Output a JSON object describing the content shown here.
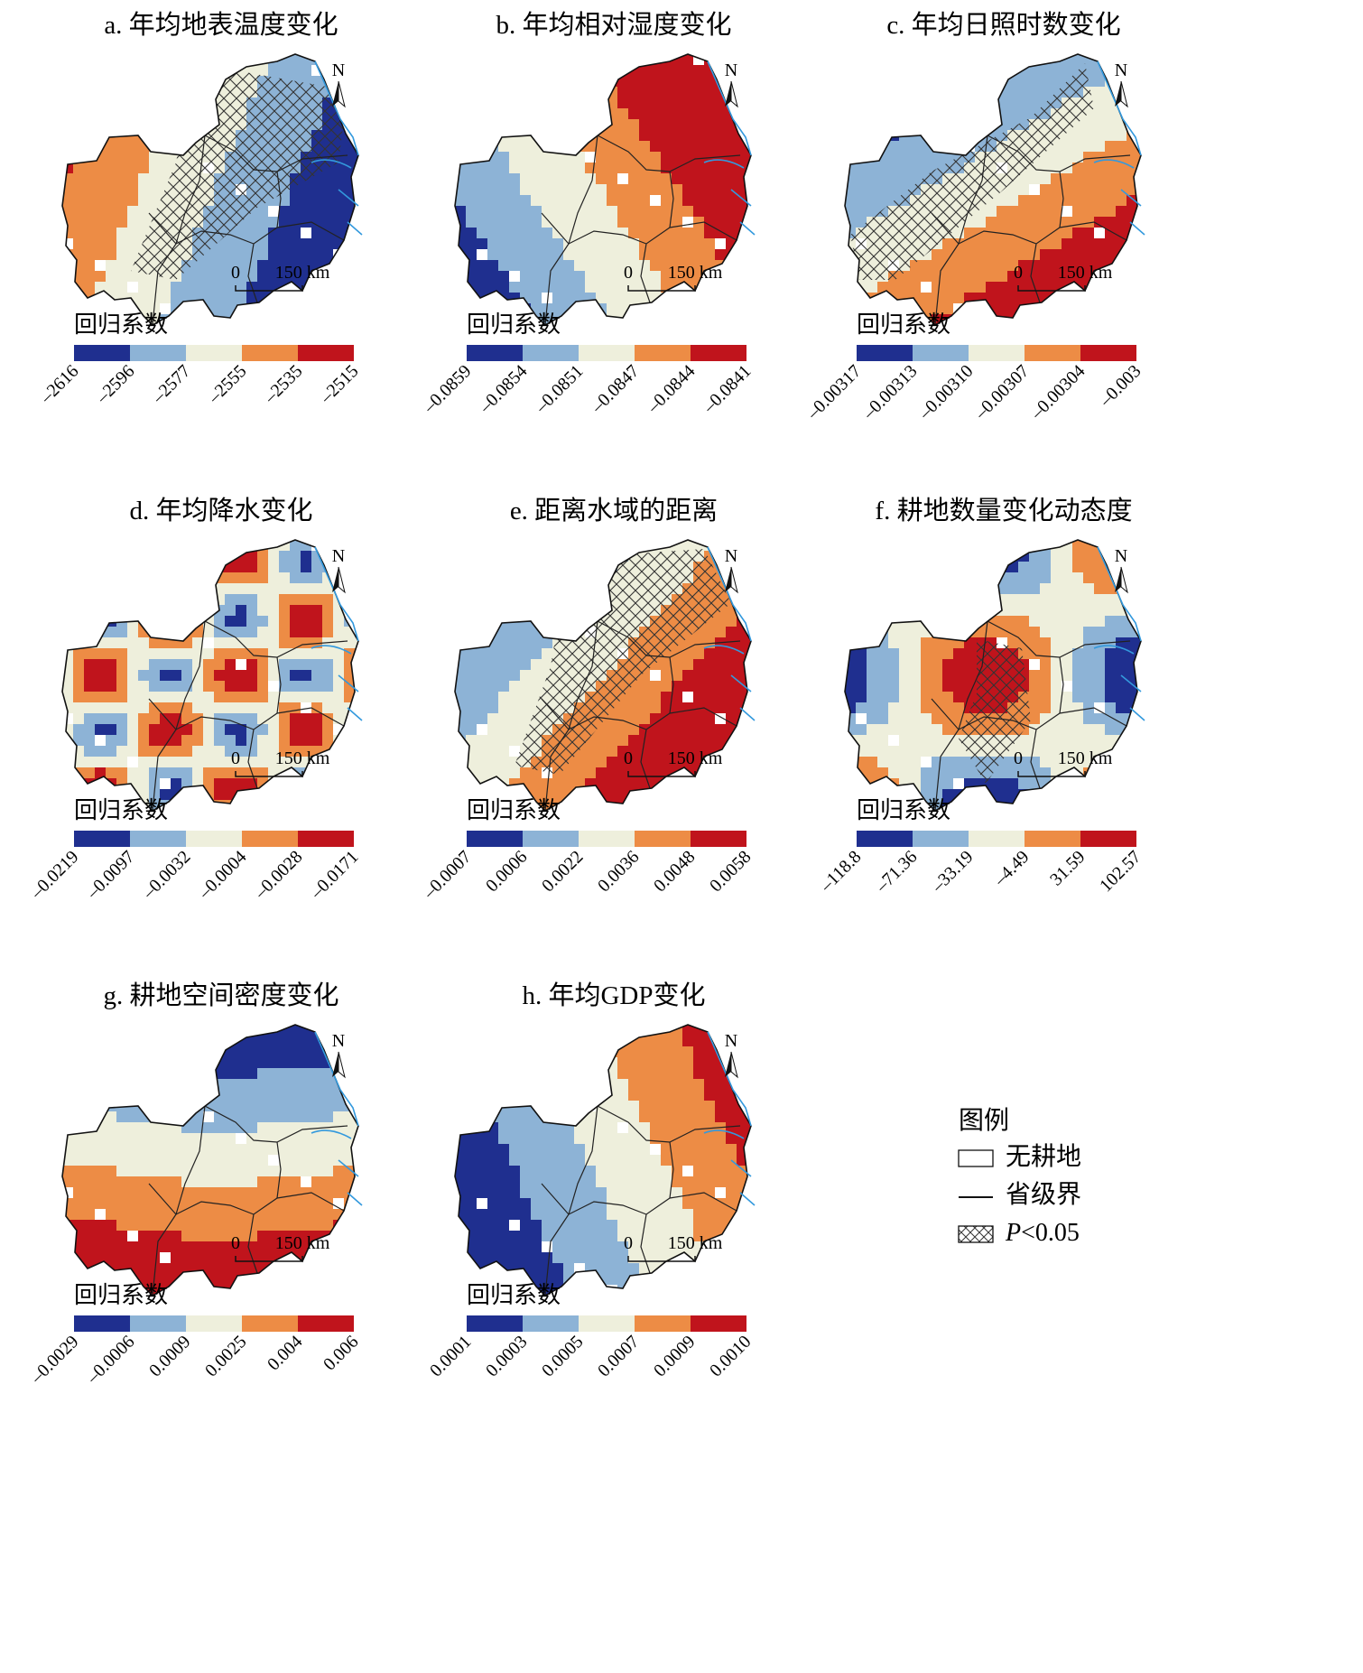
{
  "legend_heading": "回归系数",
  "north_label": "N",
  "scale_zero": "0",
  "scale_label": "150 km",
  "colors": [
    "#1f2f8f",
    "#8db3d6",
    "#eeefdc",
    "#ed8c45",
    "#c0141c"
  ],
  "panels": [
    {
      "title": "a. 年均地表温度变化",
      "ticks": [
        "–2616",
        "–2596",
        "–2577",
        "–2555",
        "–2535",
        "–2515"
      ]
    },
    {
      "title": "b. 年均相对湿度变化",
      "ticks": [
        "–0.0859",
        "–0.0854",
        "–0.0851",
        "–0.0847",
        "–0.0844",
        "–0.0841"
      ]
    },
    {
      "title": "c. 年均日照时数变化",
      "ticks": [
        "–0.00317",
        "–0.00313",
        "–0.00310",
        "–0.00307",
        "–0.00304",
        "–0.003"
      ]
    },
    {
      "title": "d. 年均降水变化",
      "ticks": [
        "–0.0219",
        "–0.0097",
        "–0.0032",
        "–0.0004",
        "–0.0028",
        "–0.0171"
      ]
    },
    {
      "title": "e. 距离水域的距离",
      "ticks": [
        "–0.0007",
        "0.0006",
        "0.0022",
        "0.0036",
        "0.0048",
        "0.0058"
      ]
    },
    {
      "title": "f. 耕地数量变化动态度",
      "ticks": [
        "–118.8",
        "–71.36",
        "–33.19",
        "–4.49",
        "31.59",
        "102.57"
      ]
    },
    {
      "title": "g. 耕地空间密度变化",
      "ticks": [
        "–0.0029",
        "–0.0006",
        "0.0009",
        "0.0025",
        "0.004",
        "0.006"
      ]
    },
    {
      "title": "h. 年均GDP变化",
      "ticks": [
        "0.0001",
        "0.0003",
        "0.0005",
        "0.0007",
        "0.0009",
        "0.0010"
      ]
    }
  ],
  "key": {
    "title": "图例",
    "items": [
      {
        "symbol": "box",
        "label": "无耕地"
      },
      {
        "symbol": "line",
        "label": "省级界"
      },
      {
        "symbol": "hatch",
        "label_italic": "P",
        "label_rest": "<0.05"
      }
    ]
  }
}
